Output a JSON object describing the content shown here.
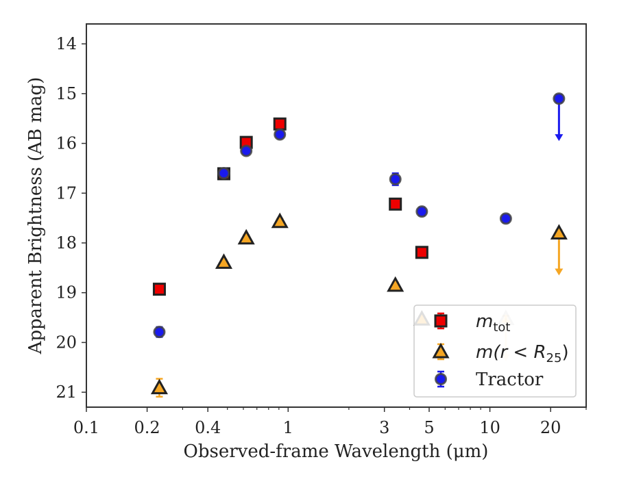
{
  "chart_data": {
    "type": "scatter",
    "xlabel": "Observed-frame Wavelength (μm)",
    "ylabel": "Apparent Brightness (AB mag)",
    "xscale": "log",
    "xlim": [
      0.1,
      30
    ],
    "ylim": [
      21.3,
      13.6
    ],
    "y_inverted": true,
    "x_ticks": [
      {
        "value": 0.1,
        "label": "0.1"
      },
      {
        "value": 0.2,
        "label": "0.2"
      },
      {
        "value": 0.4,
        "label": "0.4"
      },
      {
        "value": 1,
        "label": "1"
      },
      {
        "value": 3,
        "label": "3"
      },
      {
        "value": 5,
        "label": "5"
      },
      {
        "value": 10,
        "label": "10"
      },
      {
        "value": 20,
        "label": "20"
      }
    ],
    "y_ticks": [
      {
        "value": 14,
        "label": "14"
      },
      {
        "value": 15,
        "label": "15"
      },
      {
        "value": 16,
        "label": "16"
      },
      {
        "value": 17,
        "label": "17"
      },
      {
        "value": 18,
        "label": "18"
      },
      {
        "value": 19,
        "label": "19"
      },
      {
        "value": 20,
        "label": "20"
      },
      {
        "value": 21,
        "label": "21"
      }
    ],
    "grid": false,
    "legend_position": "lower-right",
    "series": [
      {
        "key": "mtot",
        "name": "m_tot",
        "marker": "square",
        "color": "#ee0000",
        "edge": "#222222",
        "points": [
          {
            "x": 0.23,
            "y": 18.93,
            "err": 0.05
          },
          {
            "x": 0.48,
            "y": 16.61,
            "err": 0.03
          },
          {
            "x": 0.62,
            "y": 15.98,
            "err": 0.05
          },
          {
            "x": 0.91,
            "y": 15.61,
            "err": 0.04
          },
          {
            "x": 3.4,
            "y": 17.22,
            "err": 0.04
          },
          {
            "x": 4.6,
            "y": 18.19,
            "err": 0.05
          }
        ]
      },
      {
        "key": "mr25",
        "name": "m(r<R25)",
        "marker": "triangle",
        "color": "#f5a623",
        "edge": "#222222",
        "points": [
          {
            "x": 0.23,
            "y": 20.91,
            "err": 0.18
          },
          {
            "x": 0.48,
            "y": 18.39,
            "err": 0.05
          },
          {
            "x": 0.62,
            "y": 17.9,
            "err": 0.05
          },
          {
            "x": 0.91,
            "y": 17.57,
            "err": 0.05
          },
          {
            "x": 3.4,
            "y": 18.85,
            "err": 0.05
          },
          {
            "x": 4.6,
            "y": 19.53,
            "err": 0.05
          },
          {
            "x": 12.0,
            "y": 19.52,
            "err": 0.05,
            "upper_limit": true,
            "faded": true
          },
          {
            "x": 22.0,
            "y": 17.8,
            "err": 0.05,
            "upper_limit": true
          }
        ]
      },
      {
        "key": "tractor",
        "name": "Tractor",
        "marker": "circle",
        "color": "#1a1aee",
        "edge": "#444444",
        "points": [
          {
            "x": 0.23,
            "y": 19.79,
            "err": 0.1
          },
          {
            "x": 0.48,
            "y": 16.6,
            "err": 0.04
          },
          {
            "x": 0.62,
            "y": 16.15,
            "err": 0.05
          },
          {
            "x": 0.91,
            "y": 15.82,
            "err": 0.05
          },
          {
            "x": 3.4,
            "y": 16.72,
            "err": 0.12
          },
          {
            "x": 4.6,
            "y": 17.37,
            "err": 0.08
          },
          {
            "x": 12.0,
            "y": 17.51,
            "err": 0.08
          },
          {
            "x": 22.0,
            "y": 15.1,
            "err": 0.08,
            "upper_limit": true
          }
        ]
      }
    ],
    "legend": {
      "entries": [
        {
          "key": "mtot",
          "label_main": "m",
          "label_sub": "tot"
        },
        {
          "key": "mr25",
          "label_main": "m(r < R",
          "label_sub": "25",
          "label_tail": ")"
        },
        {
          "key": "tractor",
          "label_main": "Tractor"
        }
      ]
    }
  }
}
